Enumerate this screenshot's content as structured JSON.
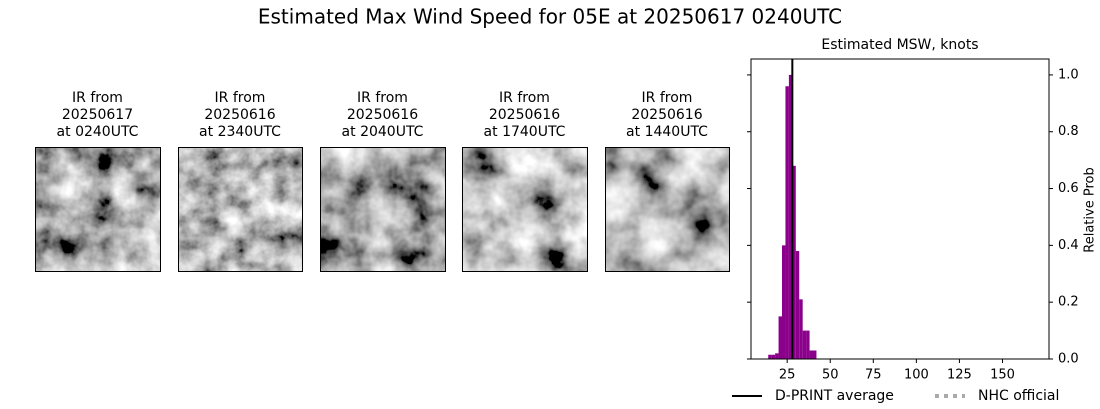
{
  "title": "Estimated Max Wind Speed for 05E at 20250617 0240UTC",
  "panels": [
    {
      "lines": [
        "IR from",
        "20250617",
        "at 0240UTC"
      ]
    },
    {
      "lines": [
        "IR from",
        "20250616",
        "at 2340UTC"
      ]
    },
    {
      "lines": [
        "IR from",
        "20250616",
        "at 2040UTC"
      ]
    },
    {
      "lines": [
        "IR from",
        "20250616",
        "at 1740UTC"
      ]
    },
    {
      "lines": [
        "IR from",
        "20250616",
        "at 1440UTC"
      ]
    }
  ],
  "chart_data": {
    "type": "histogram",
    "title": "Estimated MSW, knots",
    "ylabel": "Relative Prob",
    "bins": [
      14,
      16,
      18,
      20,
      22,
      24,
      26,
      28,
      30,
      32,
      34,
      36,
      38,
      40,
      42
    ],
    "values": [
      0.015,
      0.015,
      0.02,
      0.15,
      0.4,
      0.96,
      1.0,
      0.68,
      0.38,
      0.21,
      0.1,
      0.1,
      0.03,
      0.03
    ],
    "color": "#8b008b",
    "xlim": [
      4,
      177
    ],
    "ylim": [
      0,
      1.056
    ],
    "xticks": [
      25,
      50,
      75,
      100,
      125,
      150
    ],
    "yticks": [
      {
        "value": 0,
        "label": "0.0"
      },
      0.2,
      0.4,
      0.6,
      0.8,
      {
        "value": 1,
        "label": "1.0"
      }
    ],
    "lines": [
      {
        "name": "D-PRINT average",
        "color": "#000000",
        "style": "solid",
        "x": 28
      },
      {
        "name": "NHC official",
        "color": "#aaaaaa",
        "style": "dotted"
      }
    ]
  }
}
